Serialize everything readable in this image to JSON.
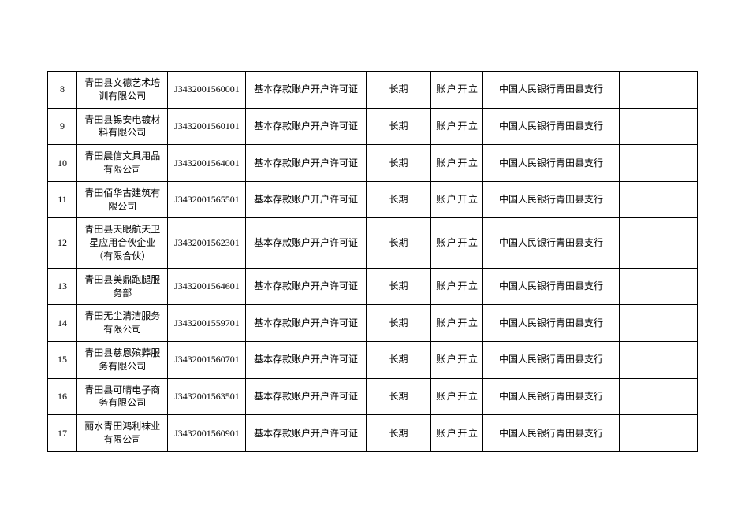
{
  "table": {
    "type": "table",
    "border_color": "#000000",
    "background_color": "#ffffff",
    "text_color": "#000000",
    "font_size_pt": 9,
    "font_family": "SimSun",
    "columns_width_pct": [
      4.5,
      14,
      12,
      18.5,
      10,
      8,
      21,
      12
    ],
    "rows": [
      {
        "idx": "8",
        "name": "青田县文德艺术培训有限公司",
        "code": "J3432001560001",
        "permit": "基本存款账户开户许可证",
        "term": "长期",
        "acct": "账户开立",
        "bank": "中国人民银行青田县支行",
        "last": ""
      },
      {
        "idx": "9",
        "name": "青田县锡安电镀材料有限公司",
        "code": "J3432001560101",
        "permit": "基本存款账户开户许可证",
        "term": "长期",
        "acct": "账户开立",
        "bank": "中国人民银行青田县支行",
        "last": ""
      },
      {
        "idx": "10",
        "name": "青田晨信文具用品有限公司",
        "code": "J3432001564001",
        "permit": "基本存款账户开户许可证",
        "term": "长期",
        "acct": "账户开立",
        "bank": "中国人民银行青田县支行",
        "last": ""
      },
      {
        "idx": "11",
        "name": "青田佰华古建筑有限公司",
        "code": "J3432001565501",
        "permit": "基本存款账户开户许可证",
        "term": "长期",
        "acct": "账户开立",
        "bank": "中国人民银行青田县支行",
        "last": ""
      },
      {
        "idx": "12",
        "name": "青田县天眼航天卫星应用合伙企业（有限合伙）",
        "code": "J3432001562301",
        "permit": "基本存款账户开户许可证",
        "term": "长期",
        "acct": "账户开立",
        "bank": "中国人民银行青田县支行",
        "last": ""
      },
      {
        "idx": "13",
        "name": "青田县美鼎跑腿服务部",
        "code": "J3432001564601",
        "permit": "基本存款账户开户许可证",
        "term": "长期",
        "acct": "账户开立",
        "bank": "中国人民银行青田县支行",
        "last": ""
      },
      {
        "idx": "14",
        "name": "青田无尘清洁服务有限公司",
        "code": "J3432001559701",
        "permit": "基本存款账户开户许可证",
        "term": "长期",
        "acct": "账户开立",
        "bank": "中国人民银行青田县支行",
        "last": ""
      },
      {
        "idx": "15",
        "name": "青田县慈恩殡葬服务有限公司",
        "code": "J3432001560701",
        "permit": "基本存款账户开户许可证",
        "term": "长期",
        "acct": "账户开立",
        "bank": "中国人民银行青田县支行",
        "last": ""
      },
      {
        "idx": "16",
        "name": "青田县可晴电子商务有限公司",
        "code": "J3432001563501",
        "permit": "基本存款账户开户许可证",
        "term": "长期",
        "acct": "账户开立",
        "bank": "中国人民银行青田县支行",
        "last": ""
      },
      {
        "idx": "17",
        "name": "丽水青田鸿利袜业有限公司",
        "code": "J3432001560901",
        "permit": "基本存款账户开户许可证",
        "term": "长期",
        "acct": "账户开立",
        "bank": "中国人民银行青田县支行",
        "last": ""
      }
    ]
  }
}
